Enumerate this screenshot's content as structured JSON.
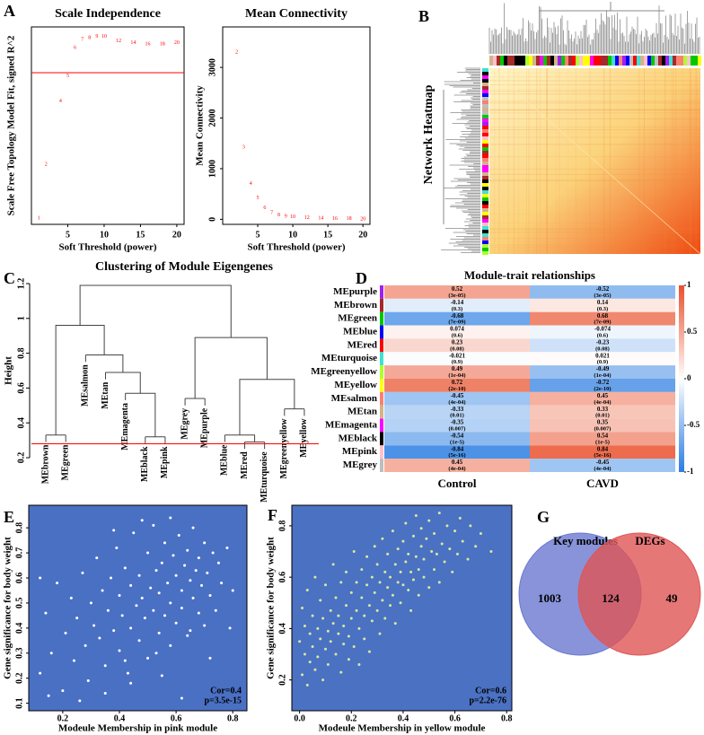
{
  "panel_labels": [
    "A",
    "B",
    "C",
    "D",
    "E",
    "F",
    "G"
  ],
  "chart_data": [
    {
      "type": "scatter",
      "marker": "label",
      "title": "Scale Independence",
      "xlabel": "Soft Threshold (power)",
      "ylabel": "Scale Free Topology Model Fit, signed R^2",
      "x": [
        1,
        2,
        4,
        5,
        6,
        7,
        8,
        9,
        10,
        12,
        14,
        16,
        18,
        20
      ],
      "values": [
        -0.21,
        0.13,
        0.53,
        0.69,
        0.87,
        0.92,
        0.93,
        0.94,
        0.94,
        0.91,
        0.9,
        0.89,
        0.89,
        0.9
      ],
      "color": "#ff0000",
      "xlim": [
        0,
        21
      ],
      "ylim": [
        -0.25,
        1.0
      ],
      "xticks": [
        5,
        10,
        15,
        20
      ],
      "hline": 0.71,
      "hline_color": "#ff0000"
    },
    {
      "type": "scatter",
      "marker": "label",
      "title": "Mean Connectivity",
      "xlabel": "Soft Threshold (power)",
      "ylabel": "Mean Connectivity",
      "x": [
        2,
        3,
        4,
        5,
        6,
        7,
        8,
        9,
        10,
        12,
        14,
        16,
        18,
        20
      ],
      "values": [
        3300,
        1420,
        700,
        420,
        230,
        130,
        80,
        60,
        50,
        30,
        20,
        15,
        10,
        8
      ],
      "color": "#ff0000",
      "xlim": [
        0,
        21
      ],
      "ylim": [
        -100,
        3800
      ],
      "xticks": [
        5,
        10,
        15,
        20
      ],
      "yticks": [
        0,
        1000,
        2000,
        3000
      ]
    },
    {
      "type": "network",
      "ylabel": "Network Heatmap"
    },
    {
      "type": "dendrogram",
      "title": "Clustering of Module Eigengenes",
      "ylabel": "Height",
      "leaves": [
        "MEbrown",
        "MEgreen",
        "MEsalmon",
        "MEtan",
        "MEmagenta",
        "MEblack",
        "MEpink",
        "MEgrey",
        "MEpurple",
        "MEblue",
        "MEred",
        "MEturquoise",
        "MEgreenyellow",
        "MEyellow"
      ],
      "merges": [
        [
          -1,
          -2,
          0.33
        ],
        [
          -6,
          -7,
          0.32
        ],
        [
          -5,
          2,
          0.57
        ],
        [
          -4,
          3,
          0.69
        ],
        [
          -3,
          4,
          0.79
        ],
        [
          1,
          5,
          0.96
        ],
        [
          -8,
          -9,
          0.54
        ],
        [
          -11,
          -12,
          0.29
        ],
        [
          -10,
          8,
          0.33
        ],
        [
          -13,
          -14,
          0.48
        ],
        [
          9,
          10,
          0.65
        ],
        [
          7,
          11,
          0.89
        ],
        [
          6,
          12,
          1.19
        ]
      ],
      "ylim": [
        0.2,
        1.2
      ],
      "yticks": [
        0.2,
        0.4,
        0.6,
        0.8,
        1.0,
        1.2
      ],
      "cut_height": 0.28,
      "cut_color": "#ff0000"
    },
    {
      "type": "heatmap",
      "title": "Module-trait relationships",
      "categories": [
        "MEpurple",
        "MEbrown",
        "MEgreen",
        "MEblue",
        "MEred",
        "MEturquoise",
        "MEgreenyellow",
        "MEyellow",
        "MEsalmon",
        "MEtan",
        "MEmagenta",
        "MEblack",
        "MEpink",
        "MEgrey"
      ],
      "row_colors": [
        "#a020f0",
        "#a52a2a",
        "#00c800",
        "#0000ff",
        "#ff0000",
        "#40e0d0",
        "#adff2f",
        "#ffff00",
        "#fa8072",
        "#d2b48c",
        "#ff00ff",
        "#000000",
        "#ffc0cb",
        "#bebebe"
      ],
      "series": [
        {
          "name": "Control",
          "values": [
            0.52,
            -0.14,
            -0.68,
            0.074,
            0.23,
            -0.021,
            0.49,
            0.72,
            -0.45,
            -0.33,
            -0.35,
            -0.54,
            -0.84,
            0.45
          ],
          "pvalues": [
            "(3e-05)",
            "(0.3)",
            "(7e-09)",
            "(0.6)",
            "(0.08)",
            "(0.9)",
            "(1e-04)",
            "(2e-10)",
            "(4e-04)",
            "(0.01)",
            "(0.007)",
            "(1e-5)",
            "(5e-16)",
            "(4e-04)"
          ]
        },
        {
          "name": "CAVD",
          "values": [
            -0.52,
            0.14,
            0.68,
            -0.074,
            -0.23,
            0.021,
            -0.49,
            -0.72,
            0.45,
            0.33,
            0.35,
            0.54,
            0.84,
            -0.45
          ],
          "pvalues": [
            "(3e-05)",
            "(0.3)",
            "(7e-09)",
            "(0.6)",
            "(0.08)",
            "(0.9)",
            "(1e-04)",
            "(2e-10)",
            "(4e-04)",
            "(0.01)",
            "(0.007)",
            "(1e-5)",
            "(5e-16)",
            "(4e-04)"
          ]
        }
      ],
      "zlim": [
        -1,
        1
      ],
      "zticks": [
        1,
        0.5,
        0,
        -0.5,
        -1
      ],
      "colors": [
        "#2a7de1",
        "#ffffff",
        "#e9502c"
      ]
    },
    {
      "type": "scatter",
      "marker": "circle",
      "xlabel": "Modeule Membership in pink module",
      "ylabel": "Gene significance for body weight",
      "x": [
        0.12,
        0.14,
        0.16,
        0.18,
        0.2,
        0.21,
        0.23,
        0.24,
        0.25,
        0.27,
        0.28,
        0.29,
        0.3,
        0.31,
        0.32,
        0.33,
        0.34,
        0.35,
        0.36,
        0.37,
        0.38,
        0.39,
        0.4,
        0.4,
        0.41,
        0.42,
        0.43,
        0.44,
        0.44,
        0.45,
        0.46,
        0.47,
        0.47,
        0.48,
        0.49,
        0.5,
        0.5,
        0.51,
        0.52,
        0.52,
        0.53,
        0.54,
        0.54,
        0.55,
        0.56,
        0.56,
        0.57,
        0.58,
        0.58,
        0.59,
        0.6,
        0.6,
        0.61,
        0.62,
        0.62,
        0.63,
        0.64,
        0.64,
        0.65,
        0.66,
        0.66,
        0.67,
        0.68,
        0.68,
        0.69,
        0.7,
        0.7,
        0.71,
        0.72,
        0.73,
        0.74,
        0.75,
        0.76,
        0.78,
        0.8,
        0.12,
        0.15,
        0.26,
        0.35,
        0.44,
        0.55,
        0.62,
        0.72,
        0.79,
        0.48,
        0.38,
        0.58,
        0.65,
        0.53,
        0.42
      ],
      "values": [
        0.22,
        0.46,
        0.3,
        0.58,
        0.15,
        0.38,
        0.52,
        0.27,
        0.44,
        0.62,
        0.33,
        0.19,
        0.5,
        0.41,
        0.68,
        0.36,
        0.55,
        0.25,
        0.47,
        0.6,
        0.39,
        0.72,
        0.31,
        0.53,
        0.45,
        0.64,
        0.22,
        0.57,
        0.4,
        0.78,
        0.49,
        0.35,
        0.61,
        0.52,
        0.44,
        0.7,
        0.28,
        0.56,
        0.47,
        0.81,
        0.63,
        0.38,
        0.54,
        0.66,
        0.45,
        0.74,
        0.58,
        0.33,
        0.5,
        0.69,
        0.61,
        0.42,
        0.77,
        0.55,
        0.48,
        0.65,
        0.71,
        0.37,
        0.59,
        0.52,
        0.8,
        0.63,
        0.46,
        0.68,
        0.57,
        0.74,
        0.41,
        0.62,
        0.53,
        0.7,
        0.47,
        0.66,
        0.58,
        0.72,
        0.55,
        0.6,
        0.13,
        0.11,
        0.14,
        0.18,
        0.21,
        0.12,
        0.28,
        0.4,
        0.83,
        0.79,
        0.84,
        0.39,
        0.3,
        0.27
      ],
      "color": "#ffffff",
      "background": "#4a70c4",
      "xlim": [
        0.08,
        0.85
      ],
      "ylim": [
        0.07,
        0.89
      ],
      "xticks": [
        0.2,
        0.4,
        0.6,
        0.8
      ],
      "yticks": [
        0.1,
        0.2,
        0.3,
        0.4,
        0.5,
        0.6,
        0.7,
        0.8
      ],
      "annotations": [
        "Cor=0.4",
        "p=3.5e-15"
      ]
    },
    {
      "type": "scatter",
      "marker": "circle",
      "xlabel": "Modeule Membership in yellow module",
      "ylabel": "Gene significance for body weight",
      "x": [
        0.0,
        0.01,
        0.01,
        0.02,
        0.02,
        0.03,
        0.03,
        0.04,
        0.04,
        0.05,
        0.05,
        0.06,
        0.06,
        0.07,
        0.07,
        0.08,
        0.08,
        0.09,
        0.09,
        0.1,
        0.1,
        0.11,
        0.11,
        0.12,
        0.12,
        0.13,
        0.13,
        0.14,
        0.14,
        0.15,
        0.15,
        0.16,
        0.16,
        0.17,
        0.17,
        0.18,
        0.18,
        0.19,
        0.19,
        0.2,
        0.2,
        0.21,
        0.21,
        0.22,
        0.22,
        0.23,
        0.23,
        0.24,
        0.24,
        0.25,
        0.25,
        0.26,
        0.26,
        0.27,
        0.27,
        0.28,
        0.28,
        0.29,
        0.29,
        0.3,
        0.3,
        0.31,
        0.31,
        0.32,
        0.32,
        0.33,
        0.33,
        0.34,
        0.34,
        0.35,
        0.35,
        0.36,
        0.36,
        0.37,
        0.37,
        0.38,
        0.38,
        0.39,
        0.39,
        0.4,
        0.4,
        0.41,
        0.41,
        0.42,
        0.42,
        0.43,
        0.43,
        0.44,
        0.44,
        0.45,
        0.45,
        0.46,
        0.46,
        0.47,
        0.47,
        0.48,
        0.48,
        0.49,
        0.5,
        0.5,
        0.51,
        0.52,
        0.52,
        0.53,
        0.54,
        0.54,
        0.55,
        0.56,
        0.57,
        0.58,
        0.59,
        0.6,
        0.61,
        0.62,
        0.63,
        0.65,
        0.66,
        0.68,
        0.7,
        0.74
      ],
      "values": [
        0.35,
        0.22,
        0.48,
        0.3,
        0.41,
        0.18,
        0.55,
        0.27,
        0.38,
        0.45,
        0.33,
        0.24,
        0.6,
        0.4,
        0.29,
        0.51,
        0.36,
        0.2,
        0.44,
        0.32,
        0.57,
        0.39,
        0.26,
        0.47,
        0.35,
        0.65,
        0.42,
        0.3,
        0.52,
        0.38,
        0.45,
        0.23,
        0.58,
        0.41,
        0.34,
        0.49,
        0.62,
        0.37,
        0.28,
        0.54,
        0.44,
        0.7,
        0.33,
        0.47,
        0.58,
        0.4,
        0.26,
        0.52,
        0.63,
        0.45,
        0.36,
        0.57,
        0.68,
        0.49,
        0.31,
        0.6,
        0.43,
        0.72,
        0.54,
        0.47,
        0.65,
        0.38,
        0.58,
        0.51,
        0.75,
        0.62,
        0.44,
        0.56,
        0.69,
        0.49,
        0.6,
        0.78,
        0.53,
        0.65,
        0.42,
        0.58,
        0.71,
        0.62,
        0.5,
        0.74,
        0.57,
        0.66,
        0.81,
        0.55,
        0.69,
        0.62,
        0.47,
        0.76,
        0.59,
        0.68,
        0.84,
        0.63,
        0.53,
        0.72,
        0.79,
        0.6,
        0.67,
        0.75,
        0.56,
        0.82,
        0.7,
        0.63,
        0.77,
        0.69,
        0.58,
        0.85,
        0.73,
        0.66,
        0.8,
        0.71,
        0.62,
        0.78,
        0.69,
        0.83,
        0.74,
        0.67,
        0.8,
        0.72,
        0.77,
        0.7
      ],
      "color": "#d8e8a0",
      "background": "#4b71c2",
      "xlim": [
        -0.03,
        0.82
      ],
      "ylim": [
        0.08,
        0.88
      ],
      "xticks": [
        {
          "value": 0,
          "label": "0.0"
        },
        0.2,
        0.4,
        0.6,
        0.8
      ],
      "yticks": [
        0.2,
        0.4,
        0.6,
        0.8
      ],
      "annotations": [
        "Cor=0.6",
        "p=2.2e-76"
      ]
    },
    {
      "type": "venn",
      "sets": [
        {
          "name": "Key modules",
          "color": "#6a78d0"
        },
        {
          "name": "DEGs",
          "color": "#e05555"
        }
      ],
      "values": [
        1003,
        124,
        49
      ]
    }
  ]
}
